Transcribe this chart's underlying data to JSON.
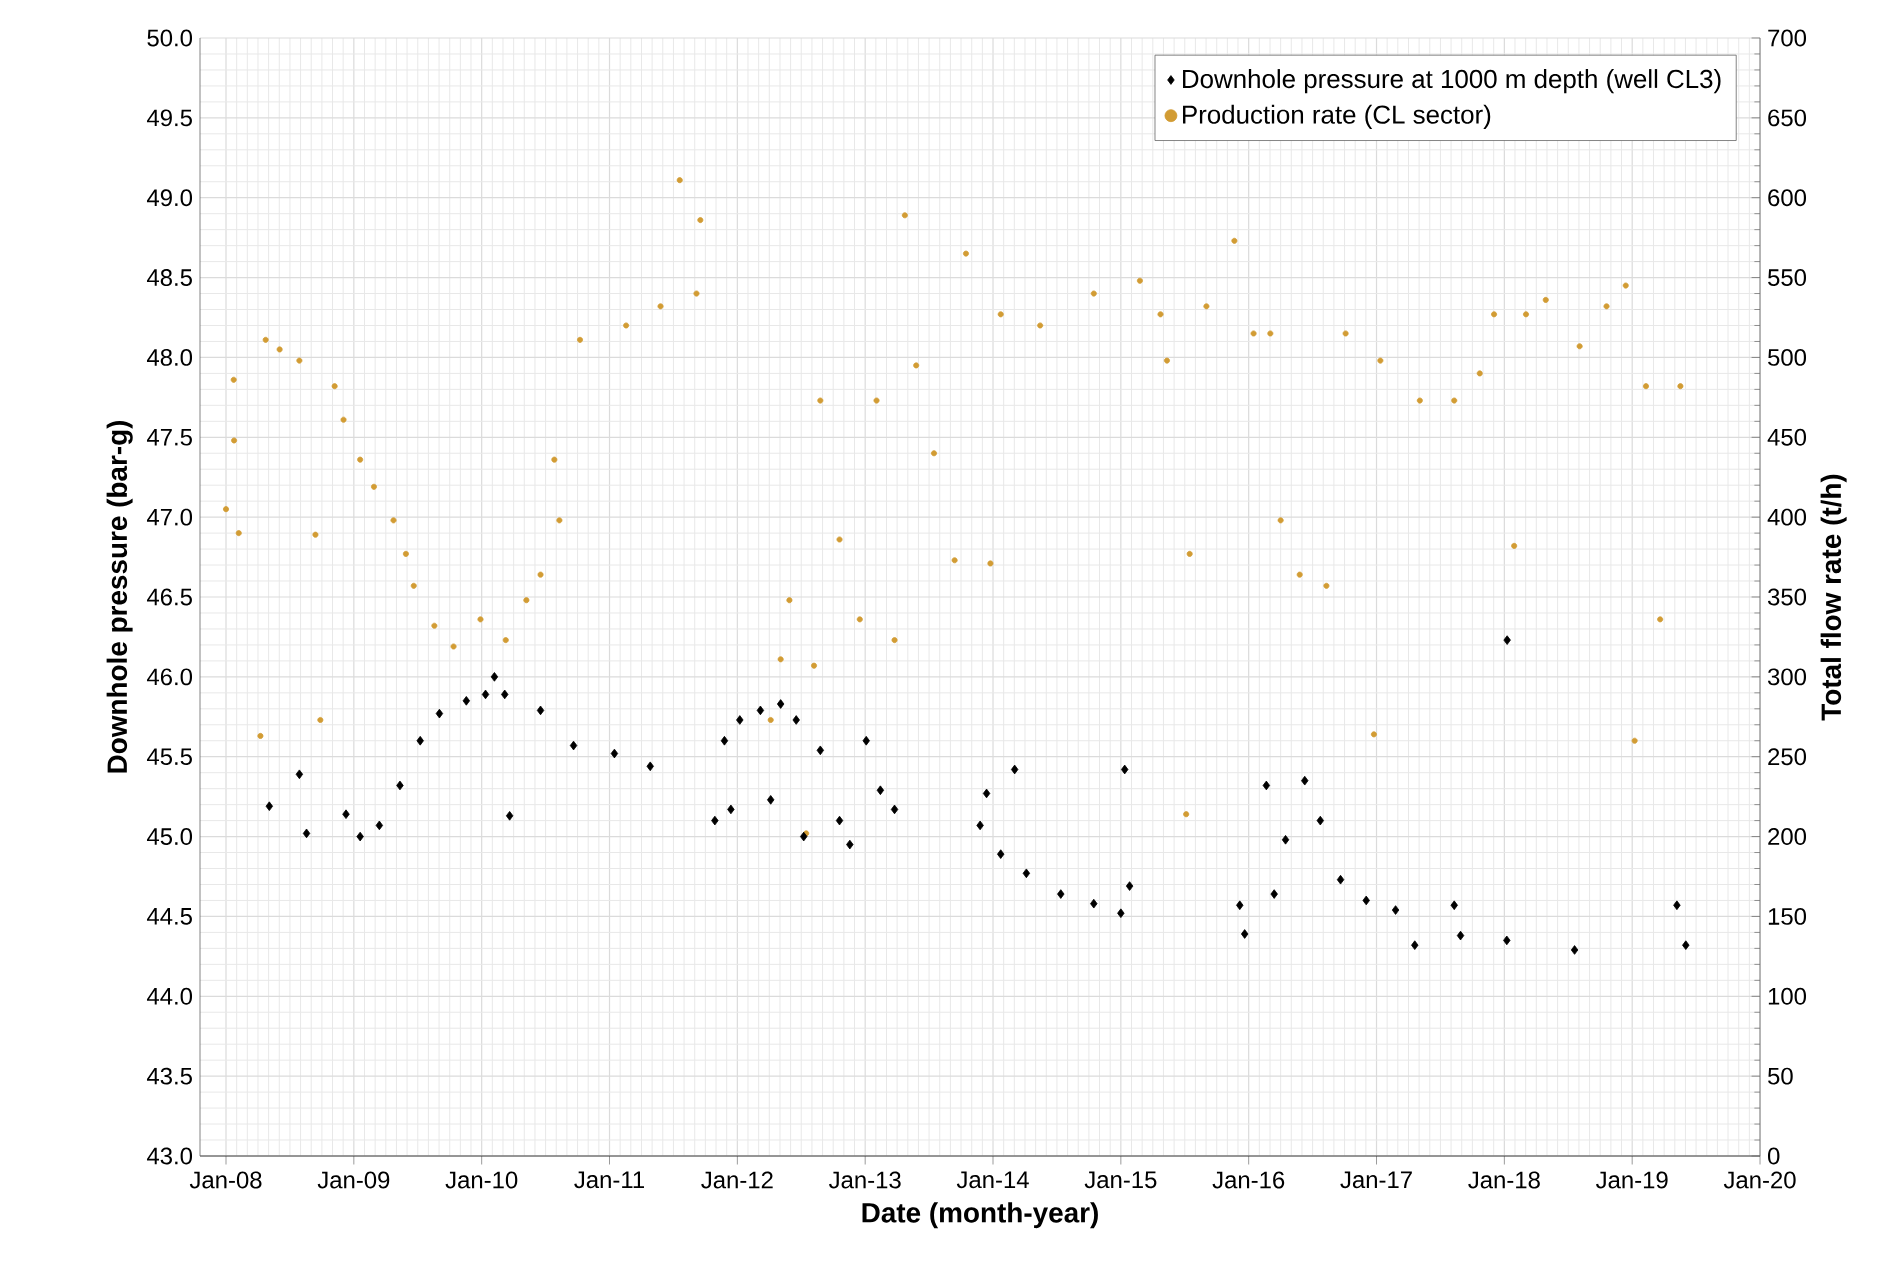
{
  "chart_data": {
    "type": "scatter",
    "xlabel": "Date (month-year)",
    "ylabel": "Downhole pressure (bar-g)",
    "y2label": "Total flow rate (t/h)",
    "xlim": [
      "2007-10-18",
      "2020-01-01"
    ],
    "xticks": [
      {
        "value": "2008-01",
        "label": "Jan-08"
      },
      {
        "value": "2009-01",
        "label": "Jan-09"
      },
      {
        "value": "2010-01",
        "label": "Jan-10"
      },
      {
        "value": "2011-01",
        "label": "Jan-11"
      },
      {
        "value": "2012-01",
        "label": "Jan-12"
      },
      {
        "value": "2013-01",
        "label": "Jan-13"
      },
      {
        "value": "2014-01",
        "label": "Jan-14"
      },
      {
        "value": "2015-01",
        "label": "Jan-15"
      },
      {
        "value": "2016-01",
        "label": "Jan-16"
      },
      {
        "value": "2017-01",
        "label": "Jan-17"
      },
      {
        "value": "2018-01",
        "label": "Jan-18"
      },
      {
        "value": "2019-01",
        "label": "Jan-19"
      },
      {
        "value": "2020-01",
        "label": "Jan-20"
      }
    ],
    "ylim": [
      43,
      50
    ],
    "yticks": [
      {
        "value": 43,
        "label": "43.0"
      },
      {
        "value": 43.5,
        "label": "43.5"
      },
      {
        "value": 44,
        "label": "44.0"
      },
      {
        "value": 44.5,
        "label": "44.5"
      },
      {
        "value": 45,
        "label": "45.0"
      },
      {
        "value": 45.5,
        "label": "45.5"
      },
      {
        "value": 46,
        "label": "46.0"
      },
      {
        "value": 46.5,
        "label": "46.5"
      },
      {
        "value": 47,
        "label": "47.0"
      },
      {
        "value": 47.5,
        "label": "47.5"
      },
      {
        "value": 48,
        "label": "48.0"
      },
      {
        "value": 48.5,
        "label": "48.5"
      },
      {
        "value": 49,
        "label": "49.0"
      },
      {
        "value": 49.5,
        "label": "49.5"
      },
      {
        "value": 50,
        "label": "50.0"
      }
    ],
    "y2lim": [
      0,
      700
    ],
    "y2ticks": [
      0,
      50,
      100,
      150,
      200,
      250,
      300,
      350,
      400,
      450,
      500,
      550,
      600,
      650,
      700
    ],
    "grid": true,
    "legend": "top right",
    "series": [
      {
        "name": "Downhole pressure at 1000 m depth (well CL3)",
        "color": "#000000",
        "marker": "diamond",
        "axis": "y",
        "x": [
          "2008-05-03",
          "2008-07-28",
          "2008-08-18",
          "2008-12-09",
          "2009-01-19",
          "2009-03-13",
          "2009-05-11",
          "2009-07-08",
          "2009-09-02",
          "2009-11-18",
          "2010-01-12",
          "2010-02-07",
          "2010-03-06",
          "2010-03-20",
          "2010-06-17",
          "2010-09-20",
          "2011-01-15",
          "2011-04-26",
          "2011-10-28",
          "2011-11-25",
          "2011-12-13",
          "2012-01-08",
          "2012-03-06",
          "2012-04-05",
          "2012-05-03",
          "2012-06-17",
          "2012-07-08",
          "2012-08-25",
          "2012-10-19",
          "2012-11-18",
          "2013-01-04",
          "2013-02-14",
          "2013-03-24",
          "2013-11-25",
          "2013-12-13",
          "2014-01-23",
          "2014-03-02",
          "2014-04-05",
          "2014-07-12",
          "2014-10-15",
          "2015-01-01",
          "2015-01-12",
          "2015-01-26",
          "2015-12-06",
          "2015-12-20",
          "2016-02-21",
          "2016-03-13",
          "2016-04-15",
          "2016-06-09",
          "2016-07-23",
          "2016-09-20",
          "2016-12-02",
          "2017-02-25",
          "2017-04-19",
          "2017-08-10",
          "2017-08-28",
          "2018-01-08",
          "2018-01-09",
          "2018-07-19",
          "2019-05-07",
          "2019-06-02"
        ],
        "values": [
          45.19,
          45.39,
          45.02,
          45.14,
          45.0,
          45.07,
          45.32,
          45.6,
          45.77,
          45.85,
          45.89,
          46.0,
          45.89,
          45.13,
          45.79,
          45.57,
          45.52,
          45.44,
          45.1,
          45.6,
          45.17,
          45.73,
          45.79,
          45.23,
          45.83,
          45.73,
          45.0,
          45.54,
          45.1,
          44.95,
          45.6,
          45.29,
          45.17,
          45.07,
          45.27,
          44.89,
          45.42,
          44.77,
          44.64,
          44.58,
          44.52,
          45.42,
          44.69,
          44.57,
          44.39,
          45.32,
          44.64,
          44.98,
          45.35,
          45.1,
          44.73,
          44.6,
          44.54,
          44.32,
          44.57,
          44.38,
          44.35,
          46.23,
          44.29,
          44.57,
          44.32
        ]
      },
      {
        "name": "Production rate (CL sector)",
        "color": "#d29c34",
        "marker": "circle",
        "axis": "y2",
        "x": [
          "2008-01-01",
          "2008-01-23",
          "2008-01-24",
          "2008-02-07",
          "2008-04-08",
          "2008-04-23",
          "2008-06-02",
          "2008-07-28",
          "2008-09-13",
          "2008-09-27",
          "2008-11-07",
          "2008-12-02",
          "2009-01-19",
          "2009-02-28",
          "2009-04-23",
          "2009-05-28",
          "2009-06-20",
          "2009-08-18",
          "2009-10-12",
          "2009-12-28",
          "2010-03-09",
          "2010-05-07",
          "2010-06-17",
          "2010-07-26",
          "2010-08-10",
          "2010-10-08",
          "2011-02-18",
          "2011-05-25",
          "2011-07-19",
          "2011-09-06",
          "2011-09-17",
          "2012-04-05",
          "2012-05-03",
          "2012-05-28",
          "2012-07-15",
          "2012-08-07",
          "2012-08-25",
          "2012-10-19",
          "2012-12-16",
          "2013-02-03",
          "2013-03-24",
          "2013-04-23",
          "2013-05-25",
          "2013-07-15",
          "2013-09-13",
          "2013-10-15",
          "2013-12-24",
          "2014-01-23",
          "2014-05-14",
          "2014-10-15",
          "2015-02-25",
          "2015-04-23",
          "2015-05-11",
          "2015-07-05",
          "2015-07-15",
          "2015-09-02",
          "2015-11-21",
          "2016-01-15",
          "2016-03-02",
          "2016-04-01",
          "2016-05-25",
          "2016-08-10",
          "2016-10-04",
          "2016-12-24",
          "2017-01-12",
          "2017-05-03",
          "2017-08-10",
          "2017-10-22",
          "2017-12-02",
          "2018-01-29",
          "2018-03-02",
          "2018-04-28",
          "2018-08-03",
          "2018-10-19",
          "2018-12-13",
          "2019-01-08",
          "2019-02-10",
          "2019-03-20",
          "2019-05-17"
        ],
        "values": [
          405,
          486,
          448,
          390,
          263,
          511,
          505,
          498,
          389,
          273,
          482,
          461,
          436,
          419,
          398,
          377,
          357,
          332,
          319,
          336,
          323,
          348,
          364,
          436,
          398,
          511,
          520,
          532,
          611,
          540,
          586,
          273,
          311,
          348,
          202,
          307,
          473,
          386,
          336,
          473,
          323,
          589,
          495,
          440,
          373,
          565,
          371,
          527,
          520,
          540,
          548,
          527,
          498,
          214,
          377,
          532,
          573,
          515,
          515,
          398,
          364,
          357,
          515,
          264,
          498,
          473,
          473,
          490,
          527,
          382,
          527,
          536,
          507,
          532,
          545,
          260,
          482,
          336,
          482
        ]
      }
    ]
  }
}
